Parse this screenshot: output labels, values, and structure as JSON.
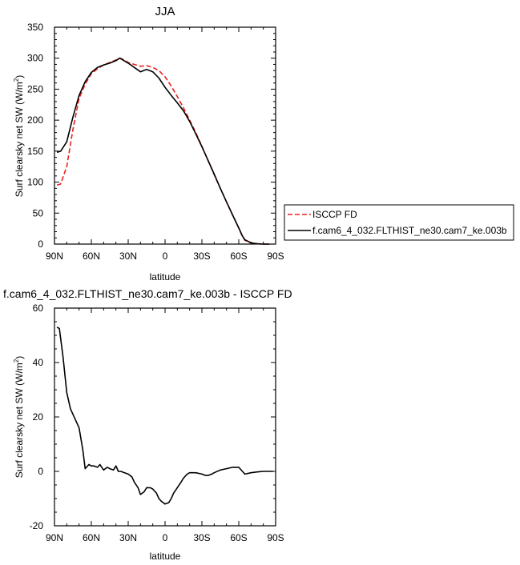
{
  "chart_data": [
    {
      "type": "line",
      "title": "JJA",
      "xlabel": "latitude",
      "ylabel": "Surf clearsky net SW (W/m",
      "ylabel_sup": "2",
      "ylabel_close": ")",
      "xlim": [
        90,
        -90
      ],
      "ylim": [
        0,
        350
      ],
      "x_ticks": [
        90,
        60,
        30,
        0,
        -30,
        -60,
        -90
      ],
      "x_tick_labels": [
        "90N",
        "60N",
        "30N",
        "0",
        "30S",
        "60S",
        "90S"
      ],
      "y_ticks": [
        0,
        50,
        100,
        150,
        200,
        250,
        300,
        350
      ],
      "y_tick_labels": [
        "0",
        "50",
        "100",
        "150",
        "200",
        "250",
        "300",
        "350"
      ],
      "grid": false,
      "legend_position": "right",
      "series": [
        {
          "name": "ISCCP FD",
          "color": "#e8211f",
          "dash": "dashed",
          "x": [
            88,
            85,
            80,
            75,
            70,
            65,
            60,
            55,
            50,
            45,
            40,
            37,
            35,
            30,
            25,
            20,
            15,
            10,
            5,
            0,
            -5,
            -10,
            -15,
            -20,
            -25,
            -30,
            -35,
            -40,
            -45,
            -50,
            -55,
            -60,
            -63,
            -65,
            -70,
            -75,
            -80,
            -85
          ],
          "y": [
            95,
            97,
            125,
            185,
            235,
            258,
            275,
            283,
            289,
            293,
            297,
            300,
            299,
            293,
            290,
            287,
            288,
            285,
            280,
            270,
            255,
            238,
            220,
            200,
            180,
            158,
            135,
            112,
            90,
            68,
            47,
            26,
            12,
            6,
            2,
            0.5,
            0,
            0
          ]
        },
        {
          "name": "f.cam6_4_032.FLTHIST_ne30.cam7_ke.003b",
          "color": "#000000",
          "dash": "solid",
          "x": [
            88,
            85,
            80,
            75,
            70,
            65,
            60,
            55,
            50,
            45,
            40,
            37,
            35,
            30,
            25,
            20,
            15,
            10,
            5,
            0,
            -5,
            -10,
            -15,
            -20,
            -25,
            -30,
            -35,
            -40,
            -45,
            -50,
            -55,
            -60,
            -63,
            -65,
            -70,
            -75,
            -80,
            -85
          ],
          "y": [
            148,
            150,
            165,
            205,
            240,
            262,
            277,
            285,
            289,
            292,
            296,
            300,
            298,
            292,
            285,
            278,
            282,
            278,
            268,
            253,
            240,
            228,
            215,
            198,
            178,
            157,
            135,
            113,
            90,
            68,
            47,
            26,
            13,
            7,
            2,
            0.5,
            0,
            0
          ]
        }
      ]
    },
    {
      "type": "line",
      "title": "f.cam6_4_032.FLTHIST_ne30.cam7_ke.003b - ISCCP FD",
      "xlabel": "latitude",
      "ylabel": "Surf clearsky net SW (W/m",
      "ylabel_sup": "2",
      "ylabel_close": ")",
      "xlim": [
        90,
        -90
      ],
      "ylim": [
        -20,
        60
      ],
      "x_ticks": [
        90,
        60,
        30,
        0,
        -30,
        -60,
        -90
      ],
      "x_tick_labels": [
        "90N",
        "60N",
        "30N",
        "0",
        "30S",
        "60S",
        "90S"
      ],
      "y_ticks": [
        -20,
        0,
        20,
        40,
        60
      ],
      "y_tick_labels": [
        "-20",
        "0",
        "20",
        "40",
        "60"
      ],
      "grid": false,
      "series": [
        {
          "color": "#000000",
          "x": [
            88,
            86,
            83,
            80,
            77,
            73,
            70,
            67,
            65,
            62,
            60,
            58,
            55,
            53,
            50,
            47,
            45,
            42,
            40,
            38,
            36,
            33,
            30,
            27,
            25,
            22,
            20,
            17,
            15,
            12,
            10,
            7,
            5,
            3,
            0,
            -3,
            -5,
            -7,
            -10,
            -13,
            -15,
            -18,
            -20,
            -23,
            -25,
            -30,
            -33,
            -35,
            -38,
            -40,
            -45,
            -50,
            -55,
            -60,
            -63,
            -65,
            -70,
            -75,
            -80,
            -85,
            -88
          ],
          "y": [
            53,
            52.5,
            42,
            29,
            23,
            19,
            16,
            8,
            1,
            2.5,
            2,
            2,
            1.5,
            2.5,
            0.5,
            1.5,
            1,
            0.5,
            2,
            0,
            0,
            -0.5,
            -1,
            -2,
            -4,
            -6,
            -8.5,
            -7.5,
            -6,
            -6,
            -6.5,
            -8,
            -10,
            -11,
            -12,
            -11.5,
            -10,
            -8,
            -6,
            -4,
            -2.5,
            -1,
            -0.5,
            -0.5,
            -0.5,
            -1,
            -1.5,
            -1.5,
            -1,
            -0.5,
            0.5,
            1,
            1.5,
            1.5,
            0,
            -1,
            -0.5,
            -0.2,
            0,
            0,
            0
          ]
        }
      ]
    }
  ]
}
